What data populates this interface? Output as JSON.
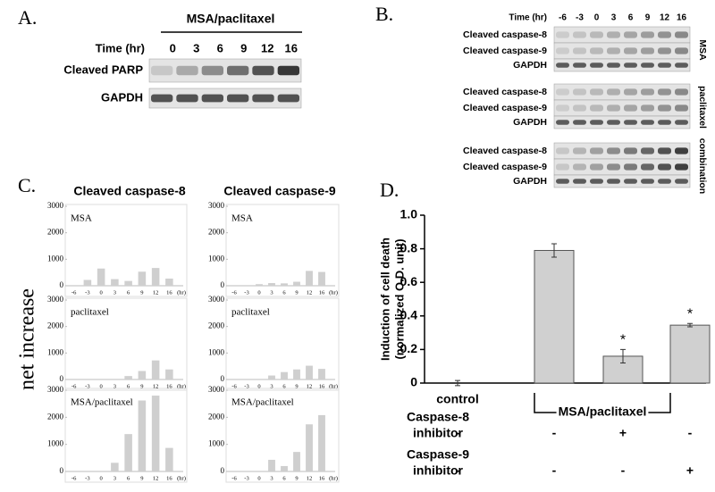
{
  "panels": {
    "A": {
      "label": "A.",
      "title": "MSA/paclitaxel",
      "time_label": "Time (hr)",
      "times": [
        "0",
        "3",
        "6",
        "9",
        "12",
        "16"
      ],
      "rows": [
        "Cleaved PARP",
        "GAPDH"
      ]
    },
    "B": {
      "label": "B.",
      "time_label": "Time (hr)",
      "times": [
        "-6",
        "-3",
        "0",
        "3",
        "6",
        "9",
        "12",
        "16"
      ],
      "groups": [
        {
          "name": "MSA",
          "rows": [
            "Cleaved caspase-8",
            "Cleaved caspase-9",
            "GAPDH"
          ]
        },
        {
          "name": "paclitaxel",
          "rows": [
            "Cleaved caspase-8",
            "Cleaved caspase-9",
            "GAPDH"
          ]
        },
        {
          "name": "combination",
          "rows": [
            "Cleaved caspase-8",
            "Cleaved caspase-9",
            "GAPDH"
          ]
        }
      ]
    },
    "C": {
      "label": "C.",
      "ylabel": "net increase",
      "columns": [
        "Cleaved caspase-8",
        "Cleaved caspase-9"
      ]
    },
    "D": {
      "label": "D.",
      "treatment_label": "MSA/paclitaxel",
      "table": [
        {
          "label": [
            "Caspase-8",
            "inhibitor"
          ],
          "cells": [
            "-",
            "-",
            "+",
            "-"
          ]
        },
        {
          "label": [
            "Caspase-9",
            "inhibitor"
          ],
          "cells": [
            "-",
            "-",
            "-",
            "+"
          ]
        }
      ]
    }
  },
  "chart_data": [
    {
      "type": "bar",
      "label": "MSA",
      "categories": [
        "-6",
        "-3",
        "0",
        "3",
        "6",
        "9",
        "12",
        "16"
      ],
      "xlabel": "(hr)",
      "values": [
        0,
        220,
        650,
        250,
        180,
        530,
        670,
        270
      ],
      "color": "#cfcfcf",
      "ylim": [
        0,
        3000
      ],
      "yticks": [
        0,
        1000,
        2000,
        3000
      ]
    },
    {
      "type": "bar",
      "label": "MSA",
      "categories": [
        "-6",
        "-3",
        "0",
        "3",
        "6",
        "9",
        "12",
        "16"
      ],
      "xlabel": "(hr)",
      "values": [
        0,
        0,
        60,
        100,
        90,
        150,
        560,
        520
      ],
      "color": "#cfcfcf",
      "ylim": [
        0,
        3000
      ],
      "yticks": [
        0,
        1000,
        2000,
        3000
      ]
    },
    {
      "type": "bar",
      "label": "paclitaxel",
      "categories": [
        "-6",
        "-3",
        "0",
        "3",
        "6",
        "9",
        "12",
        "16"
      ],
      "xlabel": "(hr)",
      "values": [
        0,
        0,
        0,
        0,
        130,
        320,
        720,
        380
      ],
      "color": "#cfcfcf",
      "ylim": [
        0,
        3000
      ],
      "yticks": [
        0,
        1000,
        2000,
        3000
      ]
    },
    {
      "type": "bar",
      "label": "paclitaxel",
      "categories": [
        "-6",
        "-3",
        "0",
        "3",
        "6",
        "9",
        "12",
        "16"
      ],
      "xlabel": "(hr)",
      "values": [
        0,
        0,
        0,
        150,
        280,
        380,
        520,
        400
      ],
      "color": "#cfcfcf",
      "ylim": [
        0,
        3000
      ],
      "yticks": [
        0,
        1000,
        2000,
        3000
      ]
    },
    {
      "type": "bar",
      "label": "MSA/paclitaxel",
      "categories": [
        "-6",
        "-3",
        "0",
        "3",
        "6",
        "9",
        "12",
        "16"
      ],
      "xlabel": "(hr)",
      "values": [
        0,
        0,
        0,
        320,
        1380,
        2620,
        2800,
        870
      ],
      "color": "#cfcfcf",
      "ylim": [
        0,
        3000
      ],
      "yticks": [
        0,
        1000,
        2000,
        3000
      ]
    },
    {
      "type": "bar",
      "label": "MSA/paclitaxel",
      "categories": [
        "-6",
        "-3",
        "0",
        "3",
        "6",
        "9",
        "12",
        "16"
      ],
      "xlabel": "(hr)",
      "values": [
        0,
        0,
        0,
        430,
        200,
        720,
        1740,
        2080
      ],
      "color": "#cfcfcf",
      "ylim": [
        0,
        3000
      ],
      "yticks": [
        0,
        1000,
        2000,
        3000
      ]
    },
    {
      "type": "errorbar",
      "ylabel": [
        "Induction of cell death",
        "(normalized O.D. unit)"
      ],
      "categories": [
        "control",
        null,
        null,
        null
      ],
      "values": [
        0,
        0.79,
        0.16,
        0.345
      ],
      "errors": [
        0.015,
        0.04,
        0.04,
        0.01
      ],
      "annotations": [
        null,
        null,
        "*",
        "*"
      ],
      "color": "#d0d0d0",
      "ylim": [
        0,
        1
      ],
      "yticks": [
        0,
        0.2,
        0.4,
        0.6,
        0.8,
        {
          "value": 1,
          "label": "1.0"
        }
      ]
    }
  ]
}
